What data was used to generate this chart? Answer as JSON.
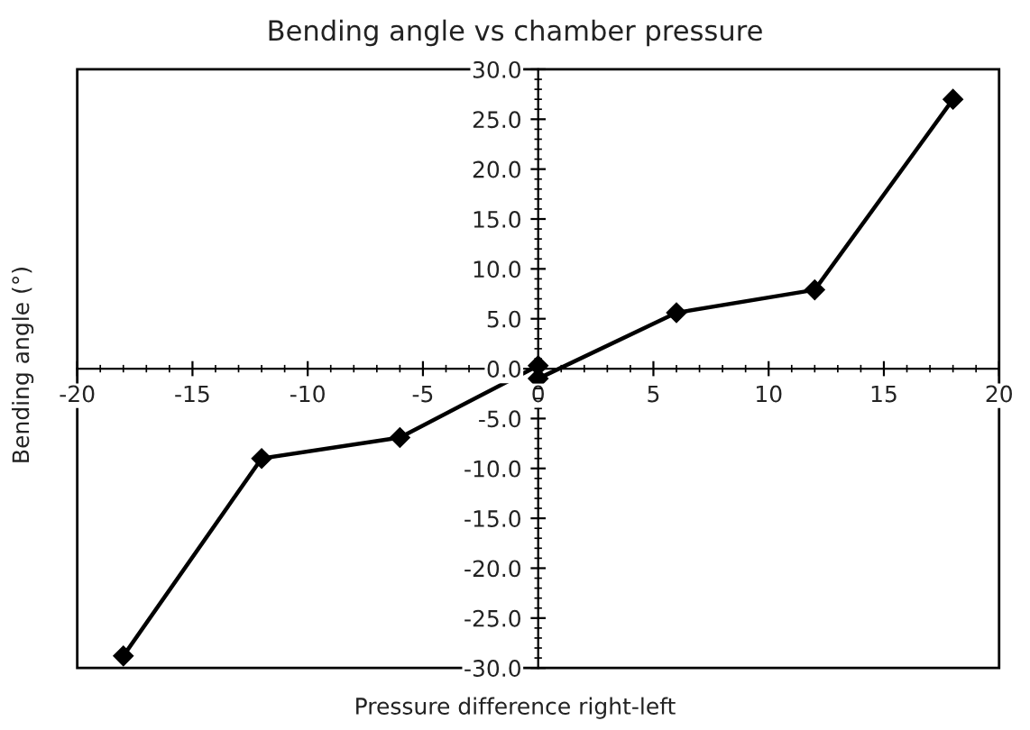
{
  "chart_data": {
    "type": "line",
    "title": "Bending angle vs chamber pressure",
    "xlabel": "Pressure difference right-left",
    "ylabel": "Bending angle (°)",
    "x": [
      -18,
      -12,
      -6,
      0,
      0,
      6,
      12,
      18
    ],
    "series": [
      {
        "color": "#000000",
        "values": [
          -28.8,
          -9.0,
          -6.9,
          0.3,
          -1.0,
          5.6,
          7.9,
          27.0
        ]
      }
    ],
    "xlim": [
      -20,
      20
    ],
    "xticks": [
      -20,
      -15,
      -10,
      -5,
      0,
      5,
      10,
      15,
      20
    ],
    "ylim": [
      -30,
      30
    ],
    "yticks": [
      {
        "value": -30,
        "label": "-30.0"
      },
      {
        "value": -25,
        "label": "-25.0"
      },
      {
        "value": -20,
        "label": "-20.0"
      },
      {
        "value": -15,
        "label": "-15.0"
      },
      {
        "value": -10,
        "label": "-10.0"
      },
      {
        "value": -5,
        "label": "-5.0"
      },
      {
        "value": 0,
        "label": "0.0"
      },
      {
        "value": 5,
        "label": "5.0"
      },
      {
        "value": 10,
        "label": "10.0"
      },
      {
        "value": 15,
        "label": "15.0"
      },
      {
        "value": 20,
        "label": "20.0"
      },
      {
        "value": 25,
        "label": "25.0"
      },
      {
        "value": 30,
        "label": "30.0"
      }
    ],
    "marker": "diamond",
    "line_style": "solid",
    "grid": false,
    "legend": false
  }
}
